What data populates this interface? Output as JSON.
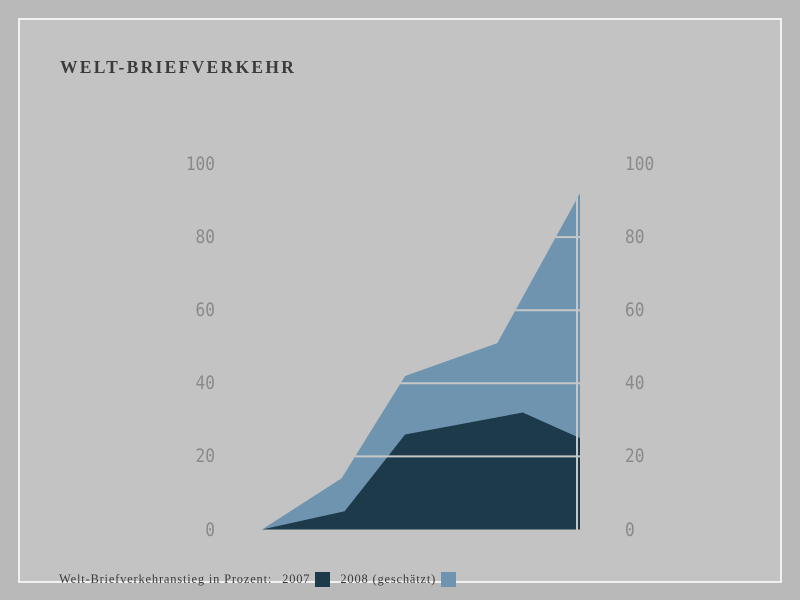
{
  "title": "WELT-BRIEFVERKEHR",
  "legend": {
    "label": "Welt-Briefverkehranstieg in Prozent:"
  },
  "colors": {
    "background_outer": "#b9b9b9",
    "background_panel": "#c3c3c3",
    "frame_line": "#f1f1f1",
    "title_text": "#3b3b3b",
    "tick_text": "#8a8a8a",
    "series_2007": "#1d3a4b",
    "series_2008": "#6f94af",
    "gridline": "#c7c7c7"
  },
  "chart_data": {
    "type": "area",
    "title": "WELT-BRIEFVERKEHR",
    "xlabel": "",
    "ylabel": "",
    "ylim": [
      0,
      100
    ],
    "yticks": [
      0,
      20,
      40,
      60,
      80,
      100
    ],
    "ytick_sides": "both (left and right)",
    "gridlines": [
      20,
      40,
      60,
      80
    ],
    "grid_clipped_to_area": true,
    "legend_position": "bottom-left",
    "series": [
      {
        "name": "2007",
        "color": "#1d3a4b",
        "x_frac": [
          0,
          0.26,
          0.45,
          0.82,
          1
        ],
        "values": [
          0,
          5,
          26,
          32,
          25
        ]
      },
      {
        "name": "2008 (geschätzt)",
        "color": "#6f94af",
        "x_frac": [
          0,
          0.25,
          0.45,
          0.74,
          1
        ],
        "values": [
          0,
          14,
          42,
          51,
          92
        ]
      }
    ]
  }
}
